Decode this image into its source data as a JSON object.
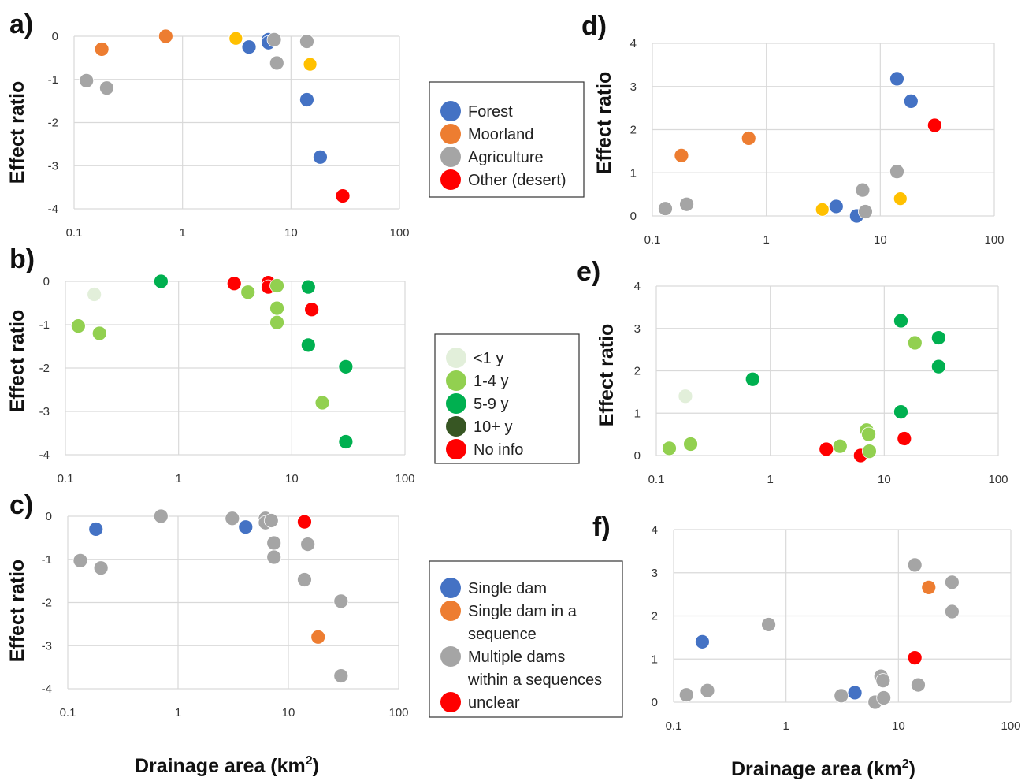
{
  "colors": {
    "forest": "#4472C4",
    "moorland": "#ED7D31",
    "agriculture": "#A5A5A5",
    "desert": "#FF0000",
    "yellow": "#FFC000",
    "lt1": "#E2EFDA",
    "age14": "#92D050",
    "age59": "#00B050",
    "age10": "#375623",
    "noinfo": "#FF0000",
    "single": "#4472C4",
    "seq": "#ED7D31",
    "multi": "#A5A5A5",
    "unclear": "#FF0000"
  },
  "xlabel_left": "Drainage area (km",
  "xlabel_right": "Drainage area (km",
  "xlabel_unit_sup": "2",
  "xlabel_close": ")",
  "legends": [
    {
      "items": [
        {
          "label": "Forest",
          "color": "forest"
        },
        {
          "label": "Moorland",
          "color": "moorland"
        },
        {
          "label": "Agriculture",
          "color": "agriculture"
        },
        {
          "label": "Other (desert)",
          "color": "desert"
        }
      ]
    },
    {
      "items": [
        {
          "label": "<1 y",
          "color": "lt1"
        },
        {
          "label": "1-4 y",
          "color": "age14"
        },
        {
          "label": "5-9 y",
          "color": "age59"
        },
        {
          "label": "10+ y",
          "color": "age10"
        },
        {
          "label": "No info",
          "color": "noinfo"
        }
      ]
    },
    {
      "items": [
        {
          "label": "Single dam",
          "color": "single"
        },
        {
          "label": "Single dam in a",
          "color": "seq"
        },
        {
          "label": "sequence",
          "color": null
        },
        {
          "label": "Multiple dams",
          "color": "multi"
        },
        {
          "label": "within a sequences",
          "color": null
        },
        {
          "label": "unclear",
          "color": "unclear"
        }
      ]
    }
  ],
  "chart_data": [
    {
      "panel": "a)",
      "type": "scatter",
      "ylabel": "Effect ratio",
      "xlabel": "",
      "xscale": "log",
      "xlim": [
        0.1,
        100
      ],
      "ylim": [
        -4,
        0
      ],
      "xticks": [
        "0.1",
        "1",
        "10",
        "100"
      ],
      "yticks": [
        "0",
        "-1",
        "-2",
        "-3",
        "-4"
      ],
      "points": [
        {
          "x": 0.13,
          "y": -1.03,
          "c": "agriculture"
        },
        {
          "x": 0.18,
          "y": -0.3,
          "c": "moorland"
        },
        {
          "x": 0.2,
          "y": -1.2,
          "c": "agriculture"
        },
        {
          "x": 0.7,
          "y": 0.0,
          "c": "moorland"
        },
        {
          "x": 3.1,
          "y": -0.05,
          "c": "agriculture"
        },
        {
          "x": 3.1,
          "y": -0.05,
          "c": "yellow"
        },
        {
          "x": 4.1,
          "y": -0.25,
          "c": "forest"
        },
        {
          "x": 6.2,
          "y": -0.08,
          "c": "forest"
        },
        {
          "x": 6.2,
          "y": -0.15,
          "c": "forest"
        },
        {
          "x": 7.0,
          "y": -0.08,
          "c": "agriculture"
        },
        {
          "x": 7.4,
          "y": -0.62,
          "c": "agriculture"
        },
        {
          "x": 14.0,
          "y": -0.12,
          "c": "agriculture"
        },
        {
          "x": 14.0,
          "y": -1.47,
          "c": "forest"
        },
        {
          "x": 15.0,
          "y": -0.65,
          "c": "agriculture"
        },
        {
          "x": 15.0,
          "y": -0.65,
          "c": "yellow"
        },
        {
          "x": 18.6,
          "y": -2.8,
          "c": "forest"
        },
        {
          "x": 30.0,
          "y": -3.7,
          "c": "desert"
        }
      ]
    },
    {
      "panel": "b)",
      "type": "scatter",
      "ylabel": "Effect ratio",
      "xlabel": "",
      "xscale": "log",
      "xlim": [
        0.1,
        100
      ],
      "ylim": [
        -4,
        0
      ],
      "xticks": [
        "0.1",
        "1",
        "10",
        "100"
      ],
      "yticks": [
        "0",
        "-1",
        "-2",
        "-3",
        "-4"
      ],
      "points": [
        {
          "x": 0.13,
          "y": -1.03,
          "c": "age14"
        },
        {
          "x": 0.18,
          "y": -0.3,
          "c": "lt1"
        },
        {
          "x": 0.2,
          "y": -1.2,
          "c": "age14"
        },
        {
          "x": 0.7,
          "y": 0.0,
          "c": "age59"
        },
        {
          "x": 3.1,
          "y": -0.05,
          "c": "noinfo"
        },
        {
          "x": 4.1,
          "y": -0.25,
          "c": "age14"
        },
        {
          "x": 6.2,
          "y": -0.03,
          "c": "noinfo"
        },
        {
          "x": 6.2,
          "y": -0.13,
          "c": "noinfo"
        },
        {
          "x": 7.4,
          "y": -0.1,
          "c": "age14"
        },
        {
          "x": 7.4,
          "y": -0.62,
          "c": "age14"
        },
        {
          "x": 7.4,
          "y": -0.95,
          "c": "age14"
        },
        {
          "x": 14.0,
          "y": -0.13,
          "c": "age59"
        },
        {
          "x": 14.0,
          "y": -1.47,
          "c": "age59"
        },
        {
          "x": 15.0,
          "y": -0.65,
          "c": "noinfo"
        },
        {
          "x": 18.6,
          "y": -2.8,
          "c": "age14"
        },
        {
          "x": 30.0,
          "y": -1.97,
          "c": "age59"
        },
        {
          "x": 30.0,
          "y": -3.7,
          "c": "age59"
        }
      ]
    },
    {
      "panel": "c)",
      "type": "scatter",
      "ylabel": "Effect ratio",
      "xlabel": "",
      "xscale": "log",
      "xlim": [
        0.1,
        100
      ],
      "ylim": [
        -4,
        0
      ],
      "xticks": [
        "0.1",
        "1",
        "10",
        "100"
      ],
      "yticks": [
        "0",
        "-1",
        "-2",
        "-3",
        "-4"
      ],
      "points": [
        {
          "x": 0.13,
          "y": -1.03,
          "c": "multi"
        },
        {
          "x": 0.18,
          "y": -0.3,
          "c": "single"
        },
        {
          "x": 0.2,
          "y": -1.2,
          "c": "multi"
        },
        {
          "x": 0.7,
          "y": 0.0,
          "c": "multi"
        },
        {
          "x": 3.1,
          "y": -0.05,
          "c": "multi"
        },
        {
          "x": 4.1,
          "y": -0.25,
          "c": "single"
        },
        {
          "x": 6.2,
          "y": -0.05,
          "c": "multi"
        },
        {
          "x": 6.2,
          "y": -0.15,
          "c": "multi"
        },
        {
          "x": 7.0,
          "y": -0.1,
          "c": "multi"
        },
        {
          "x": 7.4,
          "y": -0.62,
          "c": "multi"
        },
        {
          "x": 7.4,
          "y": -0.95,
          "c": "multi"
        },
        {
          "x": 14.0,
          "y": -0.13,
          "c": "unclear"
        },
        {
          "x": 14.0,
          "y": -1.47,
          "c": "multi"
        },
        {
          "x": 15.0,
          "y": -0.65,
          "c": "multi"
        },
        {
          "x": 18.6,
          "y": -2.8,
          "c": "seq"
        },
        {
          "x": 30.0,
          "y": -1.97,
          "c": "multi"
        },
        {
          "x": 30.0,
          "y": -3.7,
          "c": "multi"
        }
      ]
    },
    {
      "panel": "d)",
      "type": "scatter",
      "ylabel": "Effect ratio",
      "xlabel": "",
      "xscale": "log",
      "xlim": [
        0.1,
        100
      ],
      "ylim": [
        0,
        4
      ],
      "xticks": [
        "0.1",
        "1",
        "10",
        "100"
      ],
      "yticks": [
        "4",
        "3",
        "2",
        "1",
        "0"
      ],
      "points": [
        {
          "x": 0.13,
          "y": 0.17,
          "c": "agriculture"
        },
        {
          "x": 0.18,
          "y": 1.4,
          "c": "moorland"
        },
        {
          "x": 0.2,
          "y": 0.27,
          "c": "agriculture"
        },
        {
          "x": 0.7,
          "y": 1.8,
          "c": "moorland"
        },
        {
          "x": 3.1,
          "y": 0.15,
          "c": "yellow"
        },
        {
          "x": 4.1,
          "y": 0.22,
          "c": "forest"
        },
        {
          "x": 6.2,
          "y": 0.0,
          "c": "forest"
        },
        {
          "x": 7.0,
          "y": 0.6,
          "c": "agriculture"
        },
        {
          "x": 7.4,
          "y": 0.1,
          "c": "agriculture"
        },
        {
          "x": 14.0,
          "y": 1.03,
          "c": "agriculture"
        },
        {
          "x": 14.0,
          "y": 3.18,
          "c": "forest"
        },
        {
          "x": 15.0,
          "y": 0.4,
          "c": "yellow"
        },
        {
          "x": 18.6,
          "y": 2.66,
          "c": "forest"
        },
        {
          "x": 30.0,
          "y": 2.1,
          "c": "desert"
        }
      ]
    },
    {
      "panel": "e)",
      "type": "scatter",
      "ylabel": "Effect ratio",
      "xlabel": "",
      "xscale": "log",
      "xlim": [
        0.1,
        100
      ],
      "ylim": [
        0,
        4
      ],
      "xticks": [
        "0.1",
        "1",
        "10",
        "100"
      ],
      "yticks": [
        "4",
        "3",
        "2",
        "1",
        "0"
      ],
      "points": [
        {
          "x": 0.13,
          "y": 0.17,
          "c": "age14"
        },
        {
          "x": 0.18,
          "y": 1.4,
          "c": "lt1"
        },
        {
          "x": 0.2,
          "y": 0.27,
          "c": "age14"
        },
        {
          "x": 0.7,
          "y": 1.8,
          "c": "age59"
        },
        {
          "x": 3.1,
          "y": 0.15,
          "c": "noinfo"
        },
        {
          "x": 4.1,
          "y": 0.22,
          "c": "age14"
        },
        {
          "x": 6.2,
          "y": 0.0,
          "c": "noinfo"
        },
        {
          "x": 7.0,
          "y": 0.6,
          "c": "age14"
        },
        {
          "x": 7.3,
          "y": 0.5,
          "c": "age14"
        },
        {
          "x": 7.4,
          "y": 0.1,
          "c": "age14"
        },
        {
          "x": 14.0,
          "y": 1.03,
          "c": "age59"
        },
        {
          "x": 14.0,
          "y": 3.18,
          "c": "age59"
        },
        {
          "x": 15.0,
          "y": 0.4,
          "c": "noinfo"
        },
        {
          "x": 18.6,
          "y": 2.66,
          "c": "age14"
        },
        {
          "x": 30.0,
          "y": 2.78,
          "c": "age59"
        },
        {
          "x": 30.0,
          "y": 2.1,
          "c": "age59"
        }
      ]
    },
    {
      "panel": "f)",
      "type": "scatter",
      "ylabel": "",
      "xlabel": "",
      "xscale": "log",
      "xlim": [
        0.1,
        100
      ],
      "ylim": [
        0,
        4
      ],
      "xticks": [
        "0.1",
        "1",
        "10",
        "100"
      ],
      "yticks": [
        "4",
        "3",
        "2",
        "1",
        "0"
      ],
      "points": [
        {
          "x": 0.13,
          "y": 0.17,
          "c": "multi"
        },
        {
          "x": 0.18,
          "y": 1.4,
          "c": "single"
        },
        {
          "x": 0.2,
          "y": 0.27,
          "c": "multi"
        },
        {
          "x": 0.7,
          "y": 1.8,
          "c": "multi"
        },
        {
          "x": 3.1,
          "y": 0.15,
          "c": "multi"
        },
        {
          "x": 4.1,
          "y": 0.22,
          "c": "single"
        },
        {
          "x": 6.2,
          "y": 0.0,
          "c": "multi"
        },
        {
          "x": 7.0,
          "y": 0.6,
          "c": "multi"
        },
        {
          "x": 7.3,
          "y": 0.5,
          "c": "multi"
        },
        {
          "x": 7.4,
          "y": 0.1,
          "c": "multi"
        },
        {
          "x": 14.0,
          "y": 1.03,
          "c": "yellow"
        },
        {
          "x": 14.0,
          "y": 1.03,
          "c": "unclear"
        },
        {
          "x": 14.0,
          "y": 3.18,
          "c": "multi"
        },
        {
          "x": 15.0,
          "y": 0.4,
          "c": "multi"
        },
        {
          "x": 18.6,
          "y": 2.66,
          "c": "seq"
        },
        {
          "x": 30.0,
          "y": 2.78,
          "c": "multi"
        },
        {
          "x": 30.0,
          "y": 2.1,
          "c": "multi"
        }
      ]
    }
  ]
}
